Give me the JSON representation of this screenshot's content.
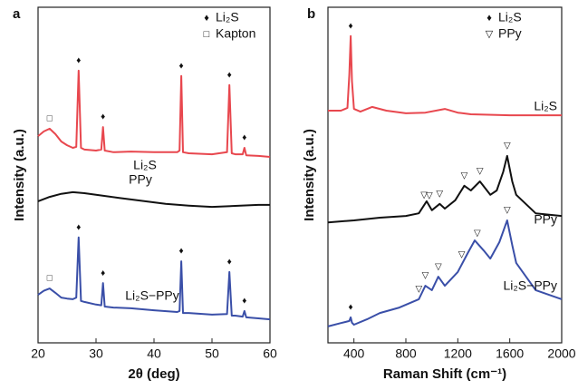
{
  "chart_data": [
    {
      "type": "line",
      "panel": "a",
      "xlabel": "2θ (deg)",
      "ylabel": "Intensity (a.u.)",
      "xlim": [
        20,
        60
      ],
      "xticks": [
        20,
        30,
        40,
        50,
        60
      ],
      "ylim": [
        0,
        100
      ],
      "legend": [
        {
          "symbol": "♦",
          "label": "Li₂S"
        },
        {
          "symbol": "□",
          "label": "Kapton"
        }
      ],
      "series": [
        {
          "name": "Li₂S",
          "color": "#e8474e",
          "x": [
            20,
            21,
            22,
            23,
            24,
            25,
            26,
            26.6,
            27,
            27.4,
            28,
            30,
            30.9,
            31.2,
            31.5,
            33,
            36,
            40,
            44,
            44.4,
            44.7,
            45,
            46,
            50,
            52.6,
            53,
            53.4,
            54,
            55.3,
            55.6,
            55.9,
            58,
            60
          ],
          "values": [
            61.6,
            63,
            63.8,
            62.2,
            60,
            58.9,
            58.1,
            58.4,
            81.1,
            58.1,
            57.6,
            57.3,
            57.6,
            64.3,
            57.3,
            56.8,
            57,
            56.8,
            56.8,
            57.3,
            79.5,
            56.8,
            56.5,
            56.2,
            56.8,
            76.8,
            56.5,
            56.2,
            56.2,
            58.1,
            55.9,
            55.7,
            55.4
          ],
          "markers": [
            {
              "x": 22,
              "symbol": "□"
            },
            {
              "x": 27,
              "symbol": "♦"
            },
            {
              "x": 31.2,
              "symbol": "♦"
            },
            {
              "x": 44.7,
              "symbol": "♦"
            },
            {
              "x": 53,
              "symbol": "♦"
            },
            {
              "x": 55.6,
              "symbol": "♦"
            }
          ]
        },
        {
          "name": "PPy",
          "color": "#111111",
          "x": [
            20,
            22,
            24,
            26,
            28,
            30,
            34,
            38,
            42,
            46,
            50,
            54,
            58,
            60
          ],
          "values": [
            42.2,
            43.5,
            44.4,
            44.9,
            44.6,
            44.1,
            43.2,
            42.3,
            41.4,
            40.9,
            40.5,
            40.8,
            41.1,
            41.1
          ],
          "markers": []
        },
        {
          "name": "Li₂S−PPy",
          "color": "#3a4fa8",
          "x": [
            20,
            21,
            22,
            23,
            24,
            25,
            26,
            26.6,
            27,
            27.4,
            28,
            30,
            30.9,
            31.2,
            31.5,
            33,
            36,
            40,
            44,
            44.4,
            44.7,
            45,
            46,
            50,
            52.6,
            53,
            53.4,
            54,
            55.3,
            55.6,
            55.9,
            58,
            60
          ],
          "values": [
            14.3,
            15.5,
            16.2,
            14.9,
            13.5,
            13.2,
            13,
            13.5,
            31.4,
            12.5,
            12.2,
            11.4,
            11.2,
            17.8,
            10.8,
            10.5,
            10.3,
            9.7,
            9.2,
            9.5,
            24.3,
            8.9,
            8.9,
            8.4,
            8.6,
            21.1,
            8.1,
            8.1,
            7.8,
            9.5,
            7.6,
            7.3,
            7
          ],
          "markers": [
            {
              "x": 22,
              "symbol": "□"
            },
            {
              "x": 27,
              "symbol": "♦"
            },
            {
              "x": 31.2,
              "symbol": "♦"
            },
            {
              "x": 44.7,
              "symbol": "♦"
            },
            {
              "x": 53,
              "symbol": "♦"
            },
            {
              "x": 55.6,
              "symbol": "♦"
            }
          ]
        }
      ]
    },
    {
      "type": "line",
      "panel": "b",
      "xlabel": "Raman Shift (cm⁻¹)",
      "ylabel": "Intensity (a.u.)",
      "xlim": [
        200,
        2000
      ],
      "xticks": [
        400,
        800,
        1200,
        1600,
        2000
      ],
      "ylim": [
        0,
        100
      ],
      "legend": [
        {
          "symbol": "♦",
          "label": "Li₂S"
        },
        {
          "symbol": "▽",
          "label": "PPy"
        }
      ],
      "series": [
        {
          "name": "Li₂S",
          "color": "#e8474e",
          "x": [
            200,
            300,
            350,
            365,
            375,
            385,
            400,
            450,
            540,
            650,
            800,
            950,
            1100,
            1200,
            1300,
            1600,
            2000
          ],
          "values": [
            69.2,
            69.2,
            70,
            80,
            91.4,
            78,
            69.7,
            68.9,
            70.3,
            69.2,
            68.4,
            68.6,
            69.7,
            68.6,
            68.1,
            67.8,
            67.8
          ],
          "markers": [
            {
              "x": 375,
              "symbol": "♦"
            }
          ]
        },
        {
          "name": "PPy",
          "color": "#111111",
          "x": [
            200,
            400,
            600,
            800,
            900,
            960,
            1000,
            1060,
            1100,
            1180,
            1250,
            1300,
            1370,
            1450,
            1500,
            1550,
            1580,
            1620,
            1650,
            1800,
            2000
          ],
          "values": [
            35.9,
            36.5,
            37.3,
            37.8,
            38.6,
            42.2,
            39.5,
            41.4,
            40,
            42.5,
            46.8,
            45.4,
            48.1,
            44.1,
            45.4,
            51,
            55.7,
            48,
            44.1,
            38.6,
            37.8
          ],
          "markers": [
            {
              "x": 940,
              "symbol": "▽"
            },
            {
              "x": 980,
              "symbol": "▽"
            },
            {
              "x": 1060,
              "symbol": "▽"
            },
            {
              "x": 1250,
              "symbol": "▽"
            },
            {
              "x": 1370,
              "symbol": "▽"
            },
            {
              "x": 1580,
              "symbol": "▽"
            }
          ]
        },
        {
          "name": "Li₂S−PPy",
          "color": "#3a4fa8",
          "x": [
            200,
            300,
            365,
            375,
            385,
            400,
            500,
            600,
            750,
            900,
            950,
            1000,
            1050,
            1100,
            1200,
            1280,
            1330,
            1400,
            1450,
            1520,
            1580,
            1620,
            1650,
            1800,
            2000
          ],
          "values": [
            4.9,
            5.9,
            6.5,
            7.6,
            6,
            5.4,
            7,
            8.9,
            10.5,
            13,
            17,
            15.7,
            19.7,
            17,
            21.1,
            27,
            30.5,
            27.5,
            25.1,
            30,
            36.5,
            29,
            23.8,
            15.7,
            13
          ],
          "markers": [
            {
              "x": 375,
              "symbol": "♦"
            },
            {
              "x": 900,
              "symbol": "▽"
            },
            {
              "x": 950,
              "symbol": "▽"
            },
            {
              "x": 1050,
              "symbol": "▽"
            },
            {
              "x": 1230,
              "symbol": "▽"
            },
            {
              "x": 1350,
              "symbol": "▽"
            },
            {
              "x": 1580,
              "symbol": "▽"
            }
          ]
        }
      ]
    }
  ]
}
